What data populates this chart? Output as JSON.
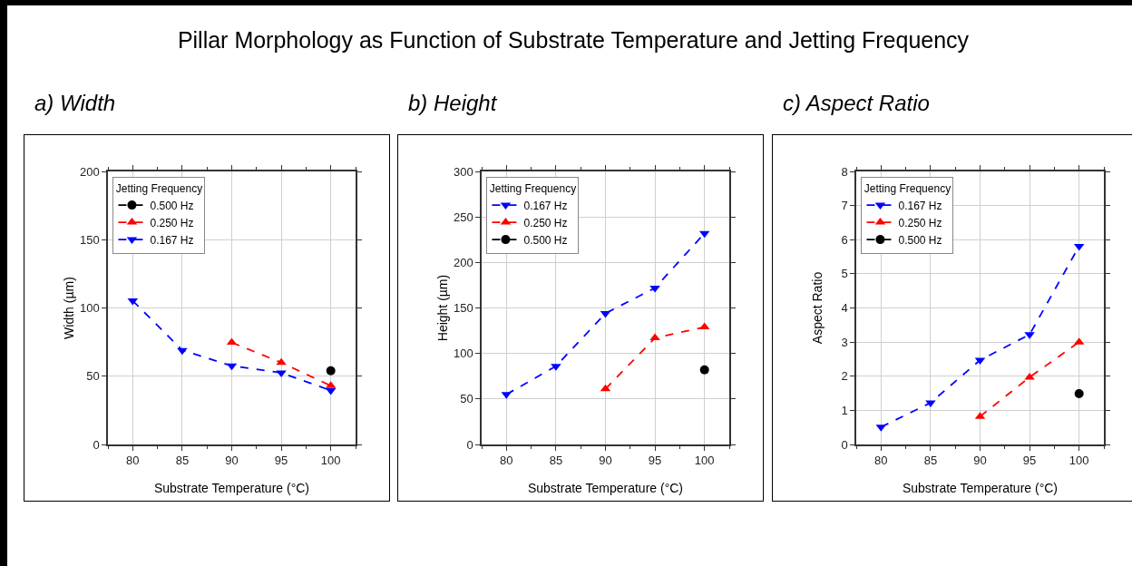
{
  "chart_data": [
    {
      "type": "line",
      "title": "a) Width",
      "annotations": [
        "Pillar Morphology as Function of Substrate Temperature and Jetting Frequency"
      ],
      "xlabel": "Substrate Temperature (°C)",
      "ylabel": "Width (µm)",
      "legend_title": "Jetting Frequency",
      "xlim": [
        77.5,
        102.5
      ],
      "xticks": [
        80,
        85,
        90,
        95,
        100
      ],
      "ylim": [
        0,
        200
      ],
      "yticks": [
        0,
        50,
        100,
        150,
        200
      ],
      "grid": true,
      "legend": "top left",
      "line_style": "dashed",
      "series": [
        {
          "name": "0.500 Hz",
          "color": "#000000",
          "marker": "circle",
          "x": [
            100
          ],
          "values": [
            54
          ]
        },
        {
          "name": "0.250 Hz",
          "color": "#ff0000",
          "marker": "triangle-up",
          "x": [
            90,
            95,
            100
          ],
          "values": [
            74.7,
            60,
            43
          ]
        },
        {
          "name": "0.167 Hz",
          "color": "#0000ff",
          "marker": "triangle-down",
          "x": [
            80,
            85,
            90,
            95,
            100
          ],
          "values": [
            105.3,
            69,
            57.6,
            52.5,
            39.5
          ]
        }
      ]
    },
    {
      "type": "line",
      "title": "b) Height",
      "xlabel": "Substrate Temperature (°C)",
      "ylabel": "Height (µm)",
      "legend_title": "Jetting Frequency",
      "xlim": [
        77.5,
        102.5
      ],
      "xticks": [
        80,
        85,
        90,
        95,
        100
      ],
      "ylim": [
        0,
        300
      ],
      "yticks": [
        0,
        50,
        100,
        150,
        200,
        250,
        300
      ],
      "grid": true,
      "legend": "top left",
      "line_style": "dashed",
      "series": [
        {
          "name": "0.167 Hz",
          "color": "#0000ff",
          "marker": "triangle-down",
          "x": [
            80,
            85,
            90,
            95,
            100
          ],
          "values": [
            55,
            86,
            144,
            172,
            232
          ]
        },
        {
          "name": "0.250 Hz",
          "color": "#ff0000",
          "marker": "triangle-up",
          "x": [
            90,
            95,
            100
          ],
          "values": [
            61,
            117,
            129
          ]
        },
        {
          "name": "0.500 Hz",
          "color": "#000000",
          "marker": "circle",
          "x": [
            100
          ],
          "values": [
            82
          ]
        }
      ]
    },
    {
      "type": "line",
      "title": "c) Aspect Ratio",
      "xlabel": "Substrate Temperature (°C)",
      "ylabel": "Aspect Ratio",
      "legend_title": "Jetting Frequency",
      "xlim": [
        77.5,
        102.5
      ],
      "xticks": [
        80,
        85,
        90,
        95,
        100
      ],
      "ylim": [
        0,
        8
      ],
      "yticks": [
        0,
        1,
        2,
        3,
        4,
        5,
        6,
        7,
        8
      ],
      "grid": true,
      "legend": "top left",
      "line_style": "dashed",
      "series": [
        {
          "name": "0.167 Hz",
          "color": "#0000ff",
          "marker": "triangle-down",
          "x": [
            80,
            85,
            90,
            95,
            100
          ],
          "values": [
            0.51,
            1.22,
            2.47,
            3.22,
            5.81
          ]
        },
        {
          "name": "0.250 Hz",
          "color": "#ff0000",
          "marker": "triangle-up",
          "x": [
            90,
            95,
            100
          ],
          "values": [
            0.82,
            1.97,
            3.0
          ]
        },
        {
          "name": "0.500 Hz",
          "color": "#000000",
          "marker": "circle",
          "x": [
            100
          ],
          "values": [
            1.49
          ]
        }
      ]
    }
  ]
}
